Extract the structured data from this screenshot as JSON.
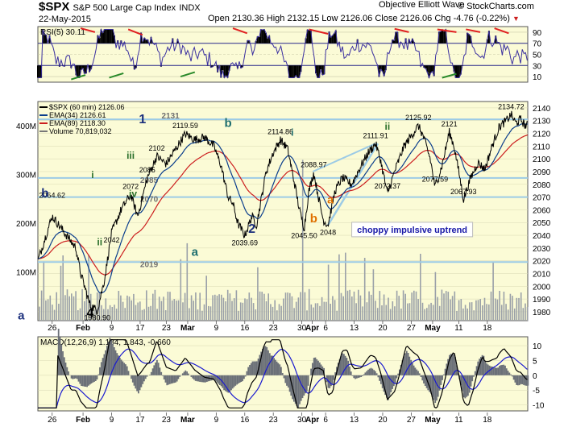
{
  "header": {
    "symbol": "$SPX",
    "name": "S&P 500 Large Cap Index",
    "exchange": "INDX",
    "date": "22-May-2015",
    "ohlc": "Open 2130.36  High 2132.15  Low 2126.06  Close 2126.06  Chg -4.76 (-0.22%)",
    "brand": "Objective Elliott Wave",
    "watermark": "© StockCharts.com"
  },
  "colors": {
    "panel_bg": "#fbfbd6",
    "price": "#000000",
    "ema34": "#0b3e8c",
    "ema89": "#cc1f1f",
    "volume": "#9aa0a8",
    "hline": "#9ccbe6",
    "rsi": "#3a2fa0",
    "wave_blue": "#1b2f7c",
    "wave_green": "#2a6f2a",
    "wave_orange": "#e07000",
    "wave_teal": "#1f6f6f"
  },
  "chart_data": [
    {
      "type": "line",
      "panel": "rsi",
      "title": "RSI(5) 30.11",
      "ylim": [
        0,
        100
      ],
      "ticks": [
        10,
        30,
        50,
        70,
        90
      ],
      "levels": [
        30,
        70
      ],
      "last_value": 30.11
    },
    {
      "type": "line",
      "panel": "price",
      "title": "$SPX (60 min) 2126.06",
      "ylim": [
        1973,
        2145
      ],
      "ticks": [
        1980,
        1990,
        2000,
        2010,
        2020,
        2030,
        2040,
        2050,
        2060,
        2070,
        2080,
        2090,
        2100,
        2110,
        2120,
        2130,
        2140
      ],
      "legend": [
        "$SPX (60 min) 2126.06",
        "EMA(34) 2126.61",
        "EMA(89) 2118.30",
        "Volume 70,819,032"
      ],
      "price_points": [
        {
          "t": 0.0,
          "v": 2020
        },
        {
          "t": 3.0,
          "v": 2055
        },
        {
          "t": 6.0,
          "v": 2040
        },
        {
          "t": 8.0,
          "v": 2030
        },
        {
          "t": 9.0,
          "v": 2010
        },
        {
          "t": 11.0,
          "v": 1985
        },
        {
          "t": 12.5,
          "v": 1981
        },
        {
          "t": 14.0,
          "v": 2005
        },
        {
          "t": 15.5,
          "v": 2042
        },
        {
          "t": 17.5,
          "v": 2060
        },
        {
          "t": 19.5,
          "v": 2072
        },
        {
          "t": 21.0,
          "v": 2055
        },
        {
          "t": 23.0,
          "v": 2085
        },
        {
          "t": 25.0,
          "v": 2102
        },
        {
          "t": 27.0,
          "v": 2096
        },
        {
          "t": 29.0,
          "v": 2108
        },
        {
          "t": 31.0,
          "v": 2119.59
        },
        {
          "t": 33.0,
          "v": 2115
        },
        {
          "t": 35.0,
          "v": 2117
        },
        {
          "t": 37.0,
          "v": 2110
        },
        {
          "t": 38.5,
          "v": 2095
        },
        {
          "t": 40.0,
          "v": 2070
        },
        {
          "t": 41.0,
          "v": 2065
        },
        {
          "t": 42.0,
          "v": 2050
        },
        {
          "t": 43.5,
          "v": 2039.69
        },
        {
          "t": 45.0,
          "v": 2055
        },
        {
          "t": 46.0,
          "v": 2048
        },
        {
          "t": 48.0,
          "v": 2090
        },
        {
          "t": 49.5,
          "v": 2105
        },
        {
          "t": 51.0,
          "v": 2114.86
        },
        {
          "t": 52.5,
          "v": 2108
        },
        {
          "t": 54.0,
          "v": 2080
        },
        {
          "t": 55.0,
          "v": 2060
        },
        {
          "t": 56.0,
          "v": 2045.5
        },
        {
          "t": 57.0,
          "v": 2075
        },
        {
          "t": 58.0,
          "v": 2088.97
        },
        {
          "t": 59.0,
          "v": 2070
        },
        {
          "t": 60.0,
          "v": 2052
        },
        {
          "t": 61.0,
          "v": 2048
        },
        {
          "t": 62.5,
          "v": 2075
        },
        {
          "t": 64.0,
          "v": 2085
        },
        {
          "t": 66.0,
          "v": 2080
        },
        {
          "t": 68.0,
          "v": 2095
        },
        {
          "t": 69.5,
          "v": 2105
        },
        {
          "t": 71.0,
          "v": 2111.91
        },
        {
          "t": 72.0,
          "v": 2100
        },
        {
          "t": 73.5,
          "v": 2072.37
        },
        {
          "t": 75.0,
          "v": 2090
        },
        {
          "t": 77.0,
          "v": 2110
        },
        {
          "t": 78.5,
          "v": 2118
        },
        {
          "t": 80.0,
          "v": 2125.92
        },
        {
          "t": 81.0,
          "v": 2118
        },
        {
          "t": 82.5,
          "v": 2100
        },
        {
          "t": 83.5,
          "v": 2077.59
        },
        {
          "t": 85.0,
          "v": 2095
        },
        {
          "t": 86.5,
          "v": 2121
        },
        {
          "t": 87.5,
          "v": 2110
        },
        {
          "t": 88.5,
          "v": 2090
        },
        {
          "t": 89.5,
          "v": 2067.93
        },
        {
          "t": 91.0,
          "v": 2085
        },
        {
          "t": 92.5,
          "v": 2097
        },
        {
          "t": 94.0,
          "v": 2092
        },
        {
          "t": 95.5,
          "v": 2110
        },
        {
          "t": 97.0,
          "v": 2125
        },
        {
          "t": 98.5,
          "v": 2130
        },
        {
          "t": 99.5,
          "v": 2134.72
        },
        {
          "t": 100.5,
          "v": 2128
        },
        {
          "t": 101.5,
          "v": 2131
        },
        {
          "t": 102.5,
          "v": 2126.06
        }
      ],
      "ema34": {
        "last": 2126.61
      },
      "ema89": {
        "last": 2118.3
      },
      "horizontal_levels": [
        2019,
        2070,
        2085,
        2131
      ],
      "level_labels": [
        "2131",
        "2085",
        "2070",
        "2019"
      ],
      "price_labels": [
        {
          "t": 12.5,
          "v": 1981,
          "text": "1980.90"
        },
        {
          "t": 15.5,
          "v": 2042,
          "text": "2042"
        },
        {
          "t": 19.5,
          "v": 2072,
          "text": "2072"
        },
        {
          "t": 3.0,
          "v": 2065,
          "text": "2064.62"
        },
        {
          "t": 23.0,
          "v": 2085,
          "text": "2085"
        },
        {
          "t": 25.0,
          "v": 2102,
          "text": "2102"
        },
        {
          "t": 31.0,
          "v": 2119.59,
          "text": "2119.59"
        },
        {
          "t": 43.5,
          "v": 2039.69,
          "text": "2039.69"
        },
        {
          "t": 51.0,
          "v": 2114.86,
          "text": "2114.86"
        },
        {
          "t": 56.0,
          "v": 2045.5,
          "text": "2045.50"
        },
        {
          "t": 58.0,
          "v": 2088.97,
          "text": "2088.97"
        },
        {
          "t": 61.0,
          "v": 2048,
          "text": "2048"
        },
        {
          "t": 71.0,
          "v": 2111.91,
          "text": "2111.91"
        },
        {
          "t": 73.5,
          "v": 2072.37,
          "text": "2072.37"
        },
        {
          "t": 80.0,
          "v": 2125.92,
          "text": "2125.92"
        },
        {
          "t": 83.5,
          "v": 2077.59,
          "text": "2077.59"
        },
        {
          "t": 86.5,
          "v": 2121,
          "text": "2121"
        },
        {
          "t": 89.5,
          "v": 2067.93,
          "text": "2067.93"
        },
        {
          "t": 99.5,
          "v": 2134.72,
          "text": "2134.72"
        }
      ],
      "wave_labels": [
        {
          "text": "a",
          "color": "wave_blue"
        },
        {
          "text": "4",
          "color": "#000000"
        },
        {
          "text": "b",
          "color": "wave_blue"
        },
        {
          "text": "i",
          "color": "wave_green"
        },
        {
          "text": "ii",
          "color": "wave_green"
        },
        {
          "text": "iii",
          "color": "wave_green"
        },
        {
          "text": "iv",
          "color": "wave_green"
        },
        {
          "text": "1",
          "color": "wave_blue"
        },
        {
          "text": "a",
          "color": "wave_teal"
        },
        {
          "text": "b",
          "color": "wave_teal"
        },
        {
          "text": "2",
          "color": "wave_blue"
        },
        {
          "text": "i",
          "color": "wave_teal"
        },
        {
          "text": "a",
          "color": "wave_orange"
        },
        {
          "text": "b",
          "color": "wave_orange"
        },
        {
          "text": "ii",
          "color": "wave_green"
        }
      ],
      "annotation": "choppy impulsive uptrend",
      "volume_ticks": [
        "100M",
        "200M",
        "300M",
        "400M"
      ],
      "volume_ylim": [
        0,
        450
      ]
    },
    {
      "type": "line",
      "panel": "macd",
      "title": "MACD(12,26,9) 1.184, 1.843, -0.660",
      "ylim": [
        -12,
        13
      ],
      "ticks": [
        -10,
        -5,
        0,
        5,
        10
      ],
      "macd": 1.184,
      "signal": 1.843,
      "histogram": -0.66
    }
  ],
  "x_axis": {
    "labels": [
      "26",
      "Feb",
      "9",
      "17",
      "23",
      "Mar",
      "9",
      "16",
      "23",
      "30",
      "Apr",
      "6",
      "13",
      "20",
      "27",
      "May",
      "11",
      "18"
    ],
    "bold": [
      false,
      true,
      false,
      false,
      false,
      true,
      false,
      false,
      false,
      false,
      true,
      false,
      false,
      false,
      false,
      true,
      false,
      false
    ]
  }
}
